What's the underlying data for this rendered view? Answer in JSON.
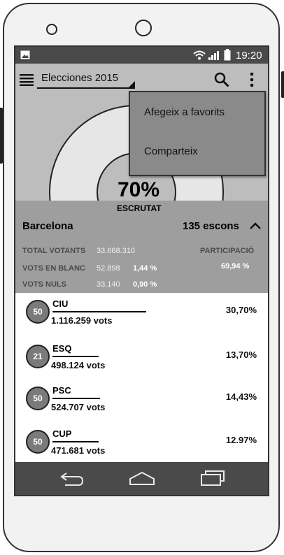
{
  "status_bar": {
    "time": "19:20"
  },
  "app_bar": {
    "title": "Elecciones 2015"
  },
  "overflow_menu": {
    "items": [
      "Afegeix a favorits",
      "Comparteix"
    ]
  },
  "hero": {
    "percent": "70%",
    "label": "ESCRUTAT",
    "progress": 0.7
  },
  "summary": {
    "region": "Barcelona",
    "seats": "135 escons",
    "total_votants_label": "TOTAL VOTANTS",
    "total_votants_value": "33.668.310",
    "vots_blanc_label": "VOTS EN BLANC",
    "vots_blanc_value": "52.898",
    "vots_blanc_pct": "1,44 %",
    "vots_nuls_label": "VOTS NULS",
    "vots_nuls_value": "33.140",
    "vots_nuls_pct": "0,90 %",
    "participacio_label": "PARTICIPACIÓ",
    "participacio_value": "69,94 %"
  },
  "parties": [
    {
      "seats": "50",
      "name": "CIU",
      "votes": "1.116.259 vots",
      "percent": "30,70%"
    },
    {
      "seats": "21",
      "name": "ESQ",
      "votes": "498.124 vots",
      "percent": "13,70%"
    },
    {
      "seats": "50",
      "name": "PSC",
      "votes": "524.707 vots",
      "percent": "14,43%"
    },
    {
      "seats": "50",
      "name": "CUP",
      "votes": "471.681 vots",
      "percent": "12.97%"
    }
  ]
}
